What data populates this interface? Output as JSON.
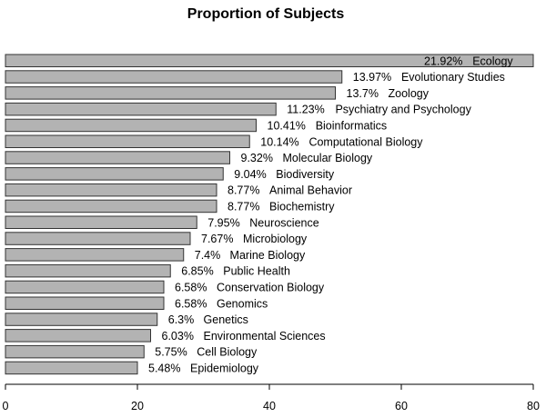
{
  "chart_data": {
    "type": "bar",
    "orientation": "horizontal",
    "title": "Proportion of Subjects",
    "xlabel": "",
    "ylabel": "",
    "xlim": [
      0,
      80
    ],
    "xticks": [
      0,
      20,
      40,
      60,
      80
    ],
    "grid": false,
    "bar_color": "#b3b3b3",
    "bar_edge_color": "#333333",
    "categories": [
      "Ecology",
      "Evolutionary Studies",
      "Zoology",
      "Psychiatry and Psychology",
      "Bioinformatics",
      "Computational Biology",
      "Molecular Biology",
      "Biodiversity",
      "Animal Behavior",
      "Biochemistry",
      "Neuroscience",
      "Microbiology",
      "Marine Biology",
      "Public Health",
      "Conservation Biology",
      "Genomics",
      "Genetics",
      "Environmental Sciences",
      "Cell Biology",
      "Epidemiology"
    ],
    "values": [
      80,
      51,
      50,
      41,
      38,
      37,
      34,
      33,
      32,
      32,
      29,
      28,
      27,
      25,
      24,
      24,
      23,
      22,
      21,
      20
    ],
    "percent_labels": [
      "21.92%",
      "13.97%",
      "13.7%",
      "11.23%",
      "10.41%",
      "10.14%",
      "9.32%",
      "9.04%",
      "8.77%",
      "8.77%",
      "7.95%",
      "7.67%",
      "7.4%",
      "6.85%",
      "6.58%",
      "6.58%",
      "6.3%",
      "6.03%",
      "5.75%",
      "5.48%"
    ]
  }
}
